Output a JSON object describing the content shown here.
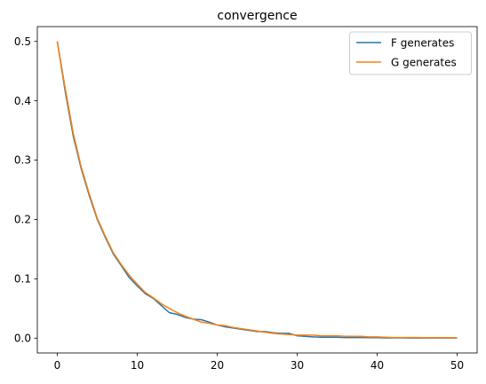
{
  "chart_data": {
    "type": "line",
    "title": "convergence",
    "xlabel": "",
    "ylabel": "",
    "xlim": [
      -2.5,
      52.5
    ],
    "ylim": [
      -0.025,
      0.525
    ],
    "x_ticks": [
      0,
      10,
      20,
      30,
      40,
      50
    ],
    "y_ticks": [
      0.0,
      0.1,
      0.2,
      0.3,
      0.4,
      0.5
    ],
    "x_tick_labels": [
      "0",
      "10",
      "20",
      "30",
      "40",
      "50"
    ],
    "y_tick_labels": [
      "0.0",
      "0.1",
      "0.2",
      "0.3",
      "0.4",
      "0.5"
    ],
    "grid": false,
    "legend_position": "top-right",
    "x": [
      0,
      1,
      2,
      3,
      4,
      5,
      6,
      7,
      8,
      9,
      10,
      11,
      12,
      13,
      14,
      15,
      16,
      17,
      18,
      19,
      20,
      21,
      22,
      23,
      24,
      25,
      26,
      27,
      28,
      29,
      30,
      31,
      32,
      33,
      34,
      35,
      36,
      37,
      38,
      39,
      40,
      41,
      42,
      43,
      44,
      45,
      46,
      47,
      48,
      49,
      50
    ],
    "series": [
      {
        "name": "F generates",
        "color": "#1f77b4",
        "values": [
          0.5,
          0.415,
          0.34,
          0.285,
          0.24,
          0.2,
          0.17,
          0.142,
          0.122,
          0.102,
          0.088,
          0.075,
          0.067,
          0.055,
          0.043,
          0.04,
          0.035,
          0.032,
          0.031,
          0.027,
          0.022,
          0.019,
          0.017,
          0.015,
          0.013,
          0.011,
          0.011,
          0.009,
          0.008,
          0.008,
          0.004,
          0.003,
          0.002,
          0.0015,
          0.0015,
          0.0015,
          0.001,
          0.001,
          0.001,
          0.0008,
          0.0008,
          0.0005,
          0.0005,
          0.0005,
          0.0003,
          0.0003,
          0.0003,
          0.0002,
          0.0002,
          0.0002,
          0.0002
        ]
      },
      {
        "name": "G generates",
        "color": "#ff7f0e",
        "values": [
          0.5,
          0.42,
          0.345,
          0.288,
          0.243,
          0.202,
          0.172,
          0.144,
          0.124,
          0.106,
          0.091,
          0.077,
          0.068,
          0.058,
          0.05,
          0.043,
          0.037,
          0.032,
          0.027,
          0.025,
          0.022,
          0.021,
          0.018,
          0.016,
          0.014,
          0.012,
          0.01,
          0.008,
          0.007,
          0.006,
          0.005,
          0.005,
          0.005,
          0.004,
          0.004,
          0.004,
          0.003,
          0.003,
          0.003,
          0.002,
          0.002,
          0.0015,
          0.001,
          0.001,
          0.001,
          0.001,
          0.0008,
          0.0008,
          0.0008,
          0.0008,
          0.0008
        ]
      }
    ]
  }
}
